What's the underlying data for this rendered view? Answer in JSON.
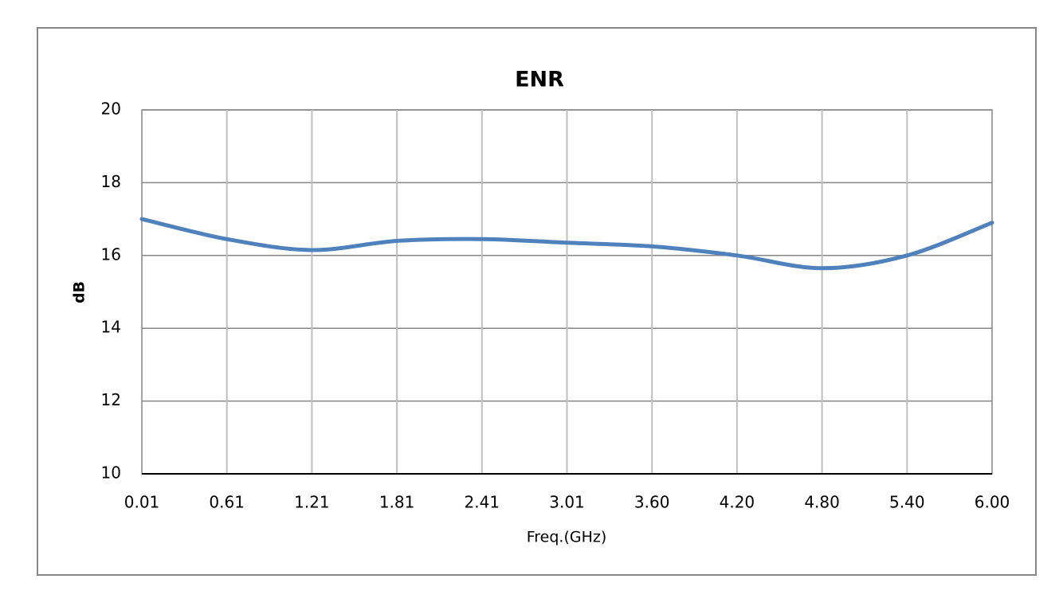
{
  "chart_data": {
    "type": "line",
    "title": "ENR",
    "x_label": "Freq.(GHz)",
    "y_label": "dB",
    "categories": [
      "0.01",
      "0.61",
      "1.21",
      "1.81",
      "2.41",
      "3.01",
      "3.60",
      "4.20",
      "4.80",
      "5.40",
      "6.00"
    ],
    "series": [
      {
        "name": "ENR",
        "color": "#4f81bd",
        "values": [
          17.0,
          16.45,
          16.15,
          16.4,
          16.45,
          16.35,
          16.25,
          16.0,
          15.65,
          16.0,
          16.9
        ]
      }
    ],
    "ylim": [
      10,
      20
    ],
    "yticks": [
      10,
      12,
      14,
      16,
      18,
      20
    ],
    "grid": true,
    "smooth": true
  }
}
